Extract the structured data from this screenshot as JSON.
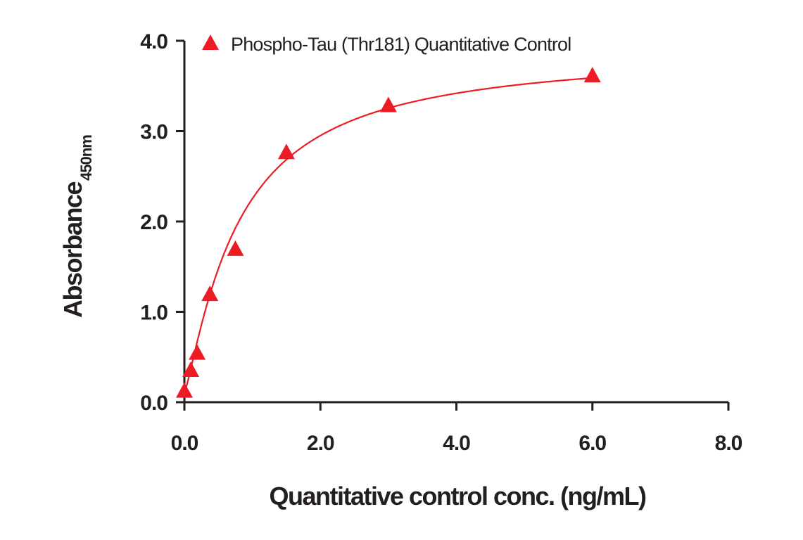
{
  "chart_data": {
    "type": "scatter",
    "title": "",
    "xlabel": "Quantitative control conc. (ng/mL)",
    "ylabel": "Absorbance",
    "ylabel_subscript": "450nm",
    "xlim": [
      0,
      8
    ],
    "ylim": [
      0,
      4
    ],
    "xticks": [
      "0.0",
      "2.0",
      "4.0",
      "6.0",
      "8.0"
    ],
    "yticks": [
      "0.0",
      "1.0",
      "2.0",
      "3.0",
      "4.0"
    ],
    "grid": false,
    "legend_position": "top-left",
    "series": [
      {
        "name": "Phospho-Tau (Thr181) Quantitative Control",
        "color": "#ed1c24",
        "marker": "triangle",
        "fit_line": true,
        "x": [
          0,
          0.094,
          0.1875,
          0.375,
          0.75,
          1.5,
          3.0,
          6.0
        ],
        "y": [
          0.12,
          0.35,
          0.54,
          1.19,
          1.69,
          2.76,
          3.28,
          3.61
        ]
      }
    ]
  }
}
